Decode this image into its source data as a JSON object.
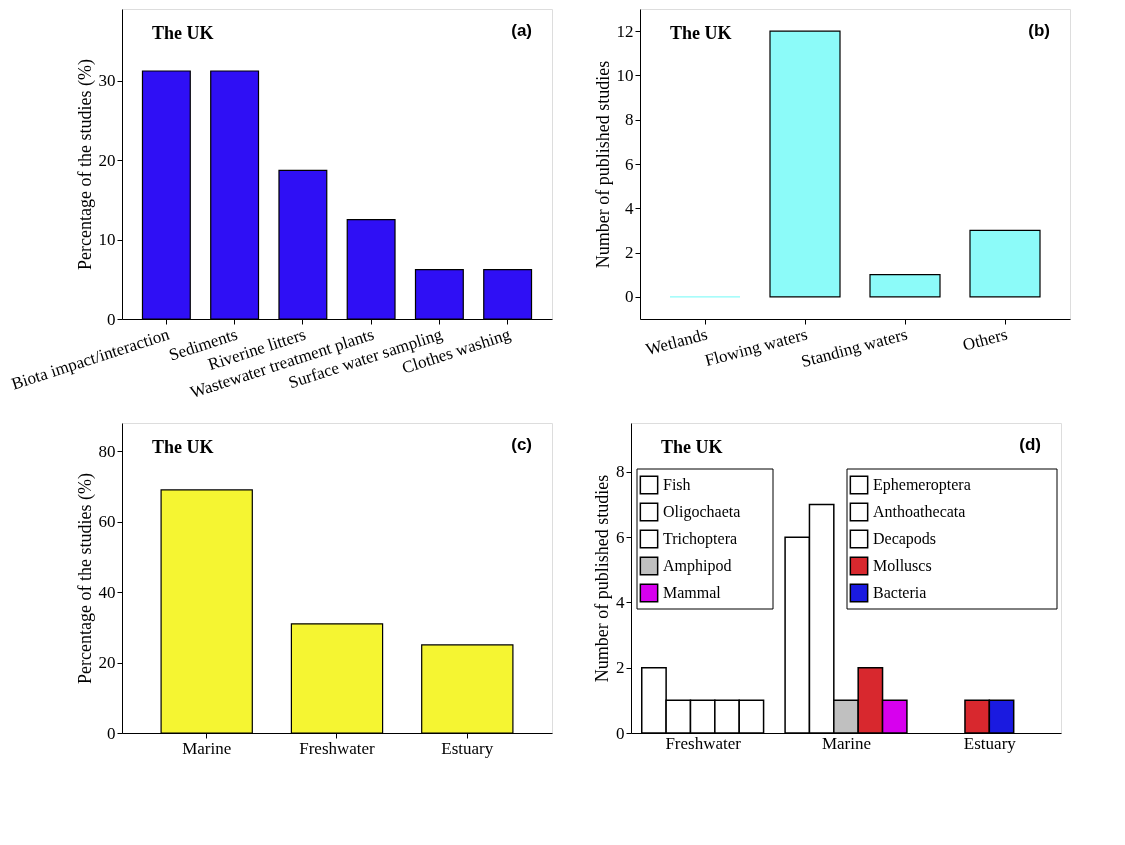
{
  "chart_data": [
    {
      "type": "bar",
      "ylabel": "Percentage of the studies (%)",
      "annotations": [
        "The UK",
        "(a)"
      ],
      "categories": [
        "Biota impact/interaction",
        "Sediments",
        "Riverine litters",
        "Wastewater treatment plants",
        "Surface water sampling",
        "Clothes washing"
      ],
      "values": [
        31.2,
        31.2,
        18.7,
        12.5,
        6.2,
        6.2
      ],
      "color": "#2f0ff5",
      "ylim": [
        0,
        39
      ],
      "yticks": [
        0,
        10,
        20,
        30
      ],
      "grid": false,
      "legend": false
    },
    {
      "type": "bar",
      "ylabel": "Number of published studies",
      "annotations": [
        "The UK",
        "(b)"
      ],
      "categories": [
        "Wetlands",
        "Flowing waters",
        "Standing waters",
        "Others"
      ],
      "values": [
        0,
        12,
        1,
        3
      ],
      "color": "#8cfbf9",
      "ylim": [
        -1,
        13
      ],
      "yticks": [
        0,
        2,
        4,
        6,
        8,
        10,
        12
      ],
      "grid": false,
      "legend": false
    },
    {
      "type": "bar",
      "ylabel": "Percentage of the studies (%)",
      "annotations": [
        "The UK",
        "(c)"
      ],
      "categories": [
        "Marine",
        "Freshwater",
        "Estuary"
      ],
      "values": [
        69,
        31,
        25
      ],
      "color": "#f5f532",
      "ylim": [
        0,
        88
      ],
      "yticks": [
        0,
        20,
        40,
        60,
        80
      ],
      "grid": false,
      "legend": false
    },
    {
      "type": "bar",
      "ylabel": "Number of published studies",
      "annotations": [
        "The UK",
        "(d)"
      ],
      "categories": [
        "Freshwater",
        "Marine",
        "Estuary"
      ],
      "ylim": [
        0,
        9.5
      ],
      "yticks": [
        0,
        2,
        4,
        6,
        8
      ],
      "grid": false,
      "legend": "top",
      "series": [
        {
          "name": "Fish",
          "color": "#ffffff",
          "values": [
            2,
            6,
            null
          ]
        },
        {
          "name": "Ephemeroptera",
          "color": "#ffffff",
          "values": [
            1,
            null,
            null
          ]
        },
        {
          "name": "Oligochaeta",
          "color": "#ffffff",
          "values": [
            1,
            null,
            null
          ]
        },
        {
          "name": "Anthoathecata",
          "color": "#ffffff",
          "values": [
            1,
            null,
            null
          ]
        },
        {
          "name": "Trichoptera",
          "color": "#ffffff",
          "values": [
            1,
            null,
            null
          ]
        },
        {
          "name": "Decapods",
          "color": "#ffffff",
          "values": [
            null,
            7,
            null
          ]
        },
        {
          "name": "Amphipod",
          "color": "#c0c0c0",
          "values": [
            null,
            1,
            null
          ]
        },
        {
          "name": "Molluscs",
          "color": "#d8282e",
          "values": [
            null,
            2,
            1
          ]
        },
        {
          "name": "Mammal",
          "color": "#d700ee",
          "values": [
            null,
            1,
            null
          ]
        },
        {
          "name": "Bacteria",
          "color": "#1a1ae0",
          "values": [
            null,
            null,
            1
          ]
        }
      ]
    }
  ]
}
